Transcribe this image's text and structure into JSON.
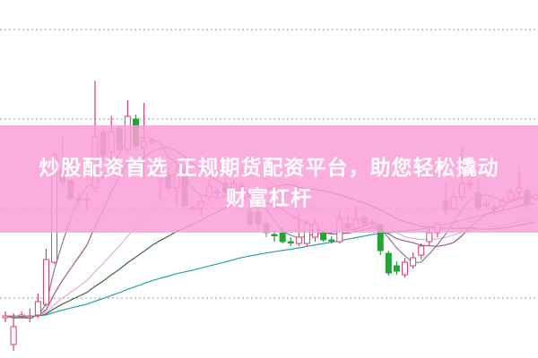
{
  "chart_data": {
    "type": "candlestick",
    "title": "",
    "xlabel": "",
    "ylabel": "",
    "grid": true,
    "grid_style": "dotted horizontal",
    "grid_levels": [
      367,
      267,
      167,
      67
    ],
    "ylim": [
      0,
      400
    ],
    "colors": {
      "up": "#d8406a",
      "down": "#8c8c8c",
      "green": "#22a535",
      "ma5": "#8a7a9c",
      "ma10": "#a05a8a",
      "ma20": "#e8a8e8",
      "ma30": "#3f6a3f",
      "ma60": "#2aa0a8"
    },
    "moving_averages": [
      5,
      10,
      20,
      30,
      60
    ],
    "candles": [
      [
        45,
        52,
        40,
        47,
        0
      ],
      [
        15,
        50,
        8,
        35,
        0
      ],
      [
        48,
        52,
        44,
        48,
        0
      ],
      [
        45,
        55,
        40,
        46,
        0
      ],
      [
        48,
        72,
        45,
        63,
        0
      ],
      [
        60,
        122,
        58,
        110,
        0
      ],
      [
        107,
        230,
        105,
        227,
        0
      ],
      [
        210,
        247,
        190,
        197,
        0
      ],
      [
        198,
        200,
        175,
        178,
        0
      ],
      [
        178,
        185,
        170,
        178,
        0
      ],
      [
        178,
        185,
        165,
        178,
        0
      ],
      [
        190,
        310,
        185,
        247,
        0
      ],
      [
        252,
        255,
        220,
        227,
        0
      ],
      [
        230,
        270,
        215,
        253,
        0
      ],
      [
        257,
        260,
        230,
        233,
        0
      ],
      [
        233,
        288,
        228,
        270,
        0
      ],
      [
        267,
        272,
        235,
        237,
        1
      ],
      [
        235,
        285,
        200,
        242,
        0
      ],
      [
        242,
        246,
        238,
        243,
        0
      ],
      [
        200,
        225,
        177,
        210,
        0
      ],
      [
        205,
        215,
        185,
        190,
        0
      ],
      [
        190,
        215,
        170,
        205,
        0
      ],
      [
        210,
        215,
        165,
        170,
        0
      ],
      [
        167,
        170,
        165,
        168,
        0
      ],
      [
        167,
        180,
        160,
        175,
        0
      ],
      [
        180,
        200,
        175,
        192,
        0
      ],
      [
        185,
        190,
        180,
        186,
        0
      ],
      [
        195,
        200,
        180,
        185,
        0
      ],
      [
        190,
        200,
        185,
        195,
        0
      ],
      [
        193,
        197,
        190,
        193,
        0
      ],
      [
        163,
        170,
        148,
        150,
        0
      ],
      [
        163,
        167,
        145,
        150,
        0
      ],
      [
        150,
        152,
        135,
        140,
        0
      ],
      [
        138,
        142,
        130,
        137,
        1
      ],
      [
        140,
        145,
        128,
        130,
        1
      ],
      [
        130,
        135,
        125,
        129,
        1
      ],
      [
        128,
        163,
        125,
        135,
        0
      ],
      [
        128,
        155,
        125,
        150,
        0
      ],
      [
        135,
        155,
        130,
        150,
        0
      ],
      [
        140,
        143,
        130,
        132,
        1
      ],
      [
        132,
        136,
        128,
        132,
        1
      ],
      [
        130,
        165,
        128,
        155,
        0
      ],
      [
        150,
        160,
        140,
        145,
        0
      ],
      [
        145,
        170,
        140,
        155,
        0
      ],
      [
        157,
        160,
        148,
        150,
        0
      ],
      [
        152,
        155,
        148,
        152,
        0
      ],
      [
        148,
        150,
        115,
        120,
        1
      ],
      [
        117,
        120,
        92,
        95,
        1
      ],
      [
        103,
        108,
        93,
        97,
        1
      ],
      [
        93,
        112,
        90,
        107,
        0
      ],
      [
        103,
        118,
        100,
        112,
        0
      ],
      [
        115,
        128,
        110,
        125,
        0
      ],
      [
        130,
        145,
        125,
        140,
        0
      ],
      [
        140,
        152,
        135,
        150,
        0
      ],
      [
        175,
        195,
        160,
        165,
        0
      ],
      [
        167,
        185,
        165,
        180,
        0
      ],
      [
        180,
        235,
        175,
        195,
        0
      ],
      [
        195,
        200,
        190,
        195,
        0
      ],
      [
        185,
        200,
        165,
        168,
        0
      ],
      [
        172,
        178,
        168,
        172,
        0
      ],
      [
        168,
        172,
        160,
        168,
        0
      ],
      [
        170,
        180,
        165,
        175,
        0
      ],
      [
        177,
        190,
        175,
        185,
        0
      ],
      [
        185,
        215,
        180,
        190,
        0
      ],
      [
        187,
        192,
        168,
        172,
        0
      ],
      [
        178,
        185,
        175,
        182,
        0
      ]
    ],
    "candle_fields": [
      "open",
      "high",
      "low",
      "close",
      "green_flag"
    ]
  },
  "banner": {
    "line1": "炒股配资首选 正规期货配资平台，助您轻松撬动",
    "line2": "财富杠杆",
    "color": "#f9a8d8"
  }
}
